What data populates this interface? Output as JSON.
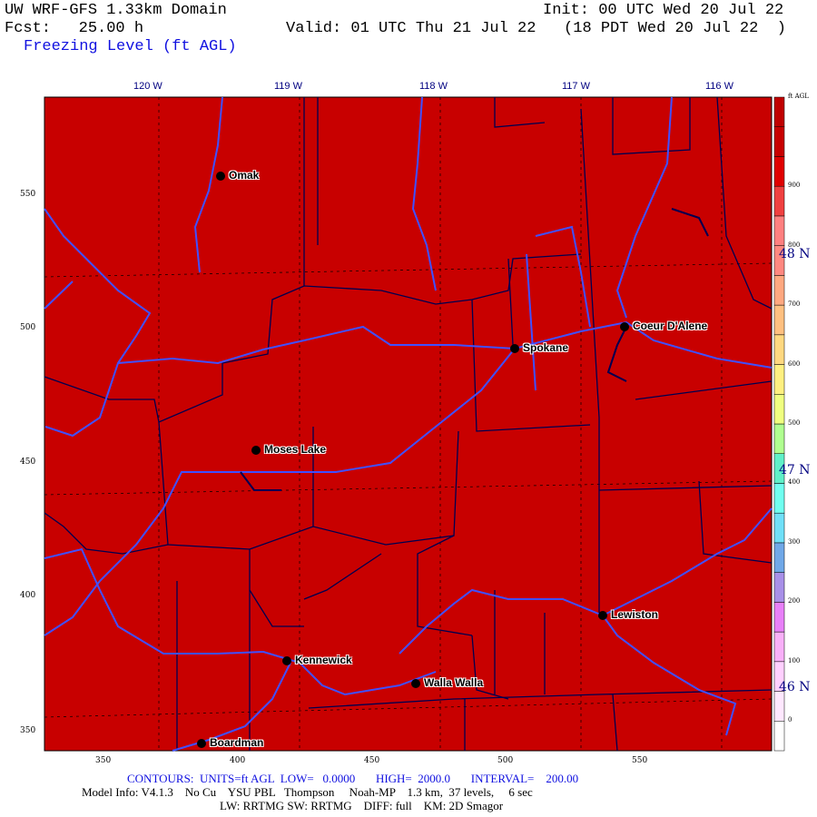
{
  "header": {
    "title": "UW WRF-GFS 1.33km Domain",
    "init": "Init: 00 UTC Wed 20 Jul 22",
    "fcst": "Fcst:   25.00 h",
    "valid": "Valid: 01 UTC Thu 21 Jul 22   (18 PDT Wed 20 Jul 22  )",
    "field": "Freezing Level (ft AGL)"
  },
  "map": {
    "fill_color": "#c80000",
    "river_color": "#4050ff",
    "border_color": "#000050",
    "lon_labels": [
      "120 W",
      "119 W",
      "118 W",
      "117 W",
      "116 W"
    ],
    "lat_labels": [
      "48 N",
      "47 N",
      "46 N"
    ],
    "y_ticks": [
      "550",
      "500",
      "450",
      "400",
      "350"
    ],
    "x_ticks": [
      "350",
      "400",
      "450",
      "500",
      "550"
    ],
    "cities": [
      {
        "name": "Omak"
      },
      {
        "name": "Coeur D'Alene"
      },
      {
        "name": "Spokane"
      },
      {
        "name": "Moses Lake"
      },
      {
        "name": "Lewiston"
      },
      {
        "name": "Kennewick"
      },
      {
        "name": "Walla Walla"
      },
      {
        "name": "Boardman"
      }
    ]
  },
  "colorbar": {
    "units": "ft AGL",
    "labels": [
      "900",
      "800",
      "700",
      "600",
      "500",
      "400",
      "300",
      "200",
      "100",
      "0"
    ],
    "colors_bottom_to_top": [
      "#ffffff",
      "#ffe8ff",
      "#ffd0ff",
      "#f8b0f8",
      "#e880f8",
      "#a890e8",
      "#70a8e8",
      "#70e0f8",
      "#70fff0",
      "#60f0c8",
      "#b0ff90",
      "#f0ff80",
      "#fff080",
      "#ffd880",
      "#ffc080",
      "#ffa880",
      "#ff8880",
      "#ff8080",
      "#f04040",
      "#e00000",
      "#c80000",
      "#c00000"
    ]
  },
  "footer": {
    "contours": "CONTOURS:  UNITS=ft AGL  LOW=   0.0000       HIGH=  2000.0       INTERVAL=    200.00",
    "model_info": "Model Info: V4.1.3    No Cu    YSU PBL   Thompson     Noah-MP    1.3 km,  37 levels,     6 sec",
    "physics": "LW: RRTMG SW: RRTMG    DIFF: full    KM: 2D Smagor"
  }
}
